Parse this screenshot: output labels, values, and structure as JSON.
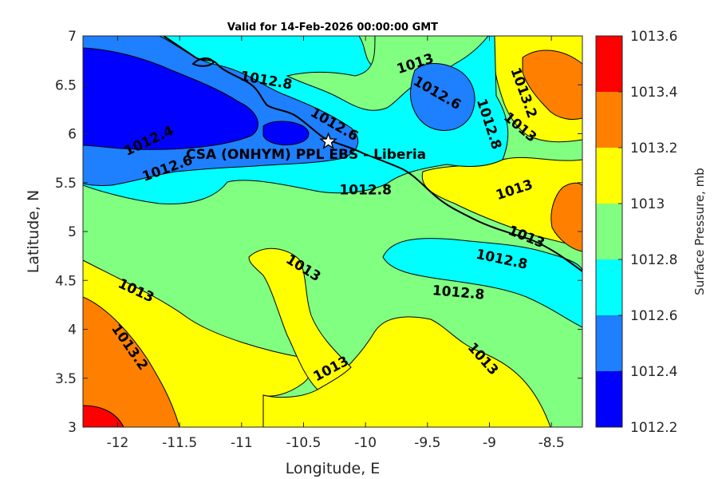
{
  "title": "Valid for 14-Feb-2026 00:00:00 GMT",
  "x_axis": {
    "label": "Longitude, E",
    "ticks": [
      {
        "value": -12,
        "label": "-12"
      },
      {
        "value": -11.5,
        "label": "-11.5"
      },
      {
        "value": -11,
        "label": "-11"
      },
      {
        "value": -10.5,
        "label": "-10.5"
      },
      {
        "value": -10,
        "label": "-10"
      },
      {
        "value": -9.5,
        "label": "-9.5"
      },
      {
        "value": -9,
        "label": "-9"
      },
      {
        "value": -8.5,
        "label": "-8.5"
      }
    ],
    "range": [
      -12.28,
      -8.25
    ]
  },
  "y_axis": {
    "label": "Latitude, N",
    "ticks": [
      {
        "value": 3,
        "label": "3"
      },
      {
        "value": 3.5,
        "label": "3.5"
      },
      {
        "value": 4,
        "label": "4"
      },
      {
        "value": 4.5,
        "label": "4.5"
      },
      {
        "value": 5,
        "label": "5"
      },
      {
        "value": 5.5,
        "label": "5.5"
      },
      {
        "value": 6,
        "label": "6"
      },
      {
        "value": 6.5,
        "label": "6.5"
      },
      {
        "value": 7,
        "label": "7"
      }
    ],
    "range": [
      3,
      7
    ]
  },
  "colorbar": {
    "title": "Surface Pressure, mb",
    "levels": [
      "1012.2",
      "1012.4",
      "1012.6",
      "1012.8",
      "1013",
      "1013.2",
      "1013.4",
      "1013.6"
    ],
    "colors": [
      "#0000ff",
      "#1e7fff",
      "#00ffff",
      "#80ff80",
      "#ffff00",
      "#ff8000",
      "#ff0000",
      "#800000"
    ]
  },
  "station": {
    "label": "CSA (ONHYM) PPL EBS  - Liberia",
    "lon": -10.3,
    "lat": 5.92
  },
  "contour_labels": [
    {
      "text": "1012.8",
      "lon": -10.8,
      "lat": 6.55,
      "rotate": 10
    },
    {
      "text": "1013",
      "lon": -9.6,
      "lat": 6.72,
      "rotate": -18
    },
    {
      "text": "1012.6",
      "lon": -9.42,
      "lat": 6.42,
      "rotate": 30
    },
    {
      "text": "1013.2",
      "lon": -8.72,
      "lat": 6.42,
      "rotate": 70
    },
    {
      "text": "1012.6",
      "lon": -10.25,
      "lat": 6.1,
      "rotate": 30
    },
    {
      "text": "1012.8",
      "lon": -9.0,
      "lat": 6.1,
      "rotate": 72
    },
    {
      "text": "1013",
      "lon": -8.75,
      "lat": 6.07,
      "rotate": 40
    },
    {
      "text": "1012.4",
      "lon": -11.75,
      "lat": 5.93,
      "rotate": -25
    },
    {
      "text": "1012.6",
      "lon": -11.6,
      "lat": 5.65,
      "rotate": -20
    },
    {
      "text": "1012.8",
      "lon": -10.0,
      "lat": 5.43,
      "rotate": 0
    },
    {
      "text": "1013",
      "lon": -8.8,
      "lat": 5.43,
      "rotate": -18
    },
    {
      "text": "1013",
      "lon": -8.7,
      "lat": 4.95,
      "rotate": 22
    },
    {
      "text": "1012.8",
      "lon": -8.9,
      "lat": 4.72,
      "rotate": 12
    },
    {
      "text": "1013",
      "lon": -10.5,
      "lat": 4.63,
      "rotate": 32
    },
    {
      "text": "1013",
      "lon": -11.85,
      "lat": 4.4,
      "rotate": 25
    },
    {
      "text": "1012.8",
      "lon": -9.25,
      "lat": 4.38,
      "rotate": 5
    },
    {
      "text": "1013.2",
      "lon": -11.9,
      "lat": 3.82,
      "rotate": 55
    },
    {
      "text": "1013",
      "lon": -9.05,
      "lat": 3.7,
      "rotate": 48
    },
    {
      "text": "1013",
      "lon": -10.28,
      "lat": 3.6,
      "rotate": -28
    }
  ]
}
